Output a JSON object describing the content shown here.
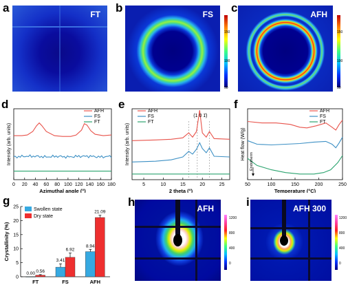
{
  "panels": {
    "a": {
      "letter": "a",
      "title": "FT"
    },
    "b": {
      "letter": "b",
      "title": "FS"
    },
    "c": {
      "letter": "c",
      "title": "AFH"
    },
    "d": {
      "letter": "d"
    },
    "e": {
      "letter": "e"
    },
    "f": {
      "letter": "f"
    },
    "g": {
      "letter": "g"
    },
    "h": {
      "letter": "h",
      "title": "AFH"
    },
    "i": {
      "letter": "i",
      "title": "AFH 300"
    }
  },
  "colorbar_ticks_abc": [
    "150",
    "100",
    "50"
  ],
  "colorbar_ticks_hi": [
    "1200",
    "800",
    "400",
    "0"
  ],
  "colors": {
    "AFH": "#e8524a",
    "FS": "#3b8fc4",
    "FT": "#2aa36e",
    "swollen": "#36a9e1",
    "dry": "#ee2f2f"
  },
  "chart_data": [
    {
      "id": "d",
      "type": "line",
      "xlabel": "Azimuthal angle (°)",
      "ylabel": "Intensity (arb. units)",
      "xlim": [
        0,
        180
      ],
      "xticks": [
        "0",
        "20",
        "40",
        "60",
        "80",
        "100",
        "120",
        "140",
        "160",
        "180"
      ],
      "legend": [
        "AFH",
        "FS",
        "FT"
      ],
      "legend_position": "top-right",
      "series": [
        {
          "name": "AFH",
          "x": [
            0,
            15,
            25,
            35,
            42,
            47,
            52,
            60,
            75,
            90,
            105,
            115,
            125,
            130,
            135,
            142,
            150,
            165,
            180
          ],
          "y": [
            62,
            62,
            63,
            68,
            76,
            80,
            76,
            68,
            62,
            61,
            61,
            63,
            70,
            79,
            77,
            69,
            64,
            62,
            63
          ]
        },
        {
          "name": "FS",
          "x": [
            0,
            20,
            40,
            60,
            80,
            100,
            120,
            140,
            160,
            180
          ],
          "y": [
            32,
            33,
            33,
            32,
            33,
            32,
            33,
            33,
            32,
            33
          ]
        },
        {
          "name": "FT",
          "x": [
            0,
            180
          ],
          "y": [
            12,
            12
          ]
        }
      ]
    },
    {
      "id": "e",
      "type": "line",
      "xlabel": "2 theta (°)",
      "ylabel": "Intensity (arb. units)",
      "xlim": [
        2,
        27
      ],
      "xticks": [
        "5",
        "10",
        "15",
        "20",
        "25"
      ],
      "annotation": "(1 0 1̄)",
      "legend": [
        "AFH",
        "FS",
        "FT"
      ],
      "legend_position": "top-left",
      "series": [
        {
          "name": "AFH",
          "x": [
            2,
            8,
            12,
            15,
            16.5,
            17.5,
            18.5,
            19.3,
            20,
            21,
            21.8,
            23,
            27
          ],
          "y": [
            55,
            56,
            57,
            59,
            66,
            60,
            68,
            98,
            66,
            60,
            68,
            58,
            57
          ]
        },
        {
          "name": "FS",
          "x": [
            2,
            8,
            12,
            15,
            16.5,
            17.5,
            18.5,
            19.3,
            20,
            21,
            21.8,
            23,
            27
          ],
          "y": [
            25,
            26,
            28,
            32,
            40,
            36,
            43,
            52,
            44,
            38,
            45,
            33,
            32
          ]
        },
        {
          "name": "FT",
          "x": [
            2,
            27
          ],
          "y": [
            8,
            8
          ]
        }
      ]
    },
    {
      "id": "f",
      "type": "line",
      "xlabel": "Temperature (°C)",
      "ylabel": "Heat flow (W/g)",
      "xlim": [
        50,
        250
      ],
      "xticks": [
        "50",
        "100",
        "150",
        "200",
        "250"
      ],
      "annotation": "Endotherm",
      "legend": [
        "AFH",
        "FS",
        "FT"
      ],
      "legend_position": "top-right",
      "series": [
        {
          "name": "AFH",
          "x": [
            50,
            80,
            110,
            140,
            160,
            175,
            195,
            215,
            228,
            236,
            243,
            250
          ],
          "y": [
            82,
            80,
            80,
            78,
            74,
            73,
            76,
            80,
            74,
            70,
            78,
            84
          ]
        },
        {
          "name": "FS",
          "x": [
            50,
            70,
            100,
            130,
            160,
            190,
            215,
            228,
            236,
            243,
            250
          ],
          "y": [
            55,
            50,
            49,
            50,
            51,
            53,
            54,
            50,
            45,
            52,
            60
          ]
        },
        {
          "name": "FT",
          "x": [
            50,
            70,
            100,
            130,
            160,
            190,
            210,
            225,
            240,
            250
          ],
          "y": [
            30,
            20,
            14,
            10,
            8,
            8,
            10,
            14,
            24,
            34
          ]
        }
      ]
    },
    {
      "id": "g",
      "type": "bar",
      "ylabel": "Crystallinity (%)",
      "ylim": [
        0,
        25
      ],
      "yticks": [
        "0",
        "5",
        "10",
        "15",
        "20",
        "25"
      ],
      "categories": [
        "FT",
        "FS",
        "AFH"
      ],
      "legend": [
        "Swollen state",
        "Dry state"
      ],
      "legend_position": "top-left",
      "series": [
        {
          "name": "Swollen state",
          "values": [
            0.0,
            3.41,
            8.94
          ],
          "errors": [
            0,
            1.2,
            0.8
          ],
          "labels": [
            "0.00",
            "3.41",
            "8.94"
          ]
        },
        {
          "name": "Dry state",
          "values": [
            0.56,
            6.92,
            21.09
          ],
          "errors": [
            0.2,
            1.5,
            0.8
          ],
          "labels": [
            "0.56",
            "6.92",
            "21.09"
          ]
        }
      ]
    }
  ]
}
